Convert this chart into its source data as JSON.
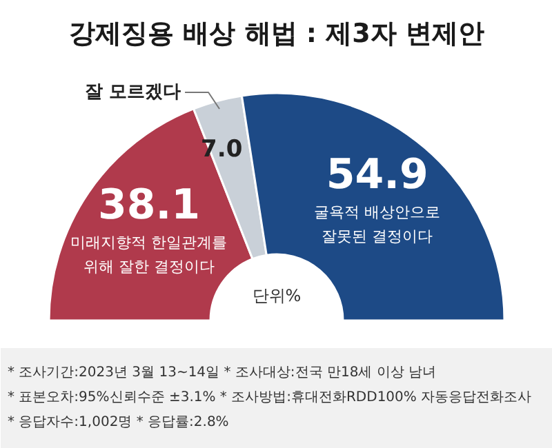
{
  "chart_data": {
    "type": "donut",
    "title": "강제징용 배상 해법 : 제3자 변제안",
    "categories": [
      "미래지향적 한일관계를\n위해 잘한 결정이다",
      "잘 모르겠다",
      "굴욕적 배상안으로\n잘못된 결정이다"
    ],
    "values": [
      38.1,
      7.0,
      54.9
    ],
    "colors": [
      "#b03a4c",
      "#c9d0d8",
      "#1d4a86"
    ],
    "value_labels": [
      "38.1",
      "7.0",
      "54.9"
    ],
    "annotations": [
      "단위%",
      "* 조사기간:2023년 3월 13~14일 * 조사대상:전국 만18세 이상 남녀",
      "* 표본오차:95%신뢰수준 ±3.1% * 조사방법:휴대전화RDD100% 자동응답전화조사",
      "* 응답자수:1,002명 * 응답률:2.8%"
    ]
  }
}
